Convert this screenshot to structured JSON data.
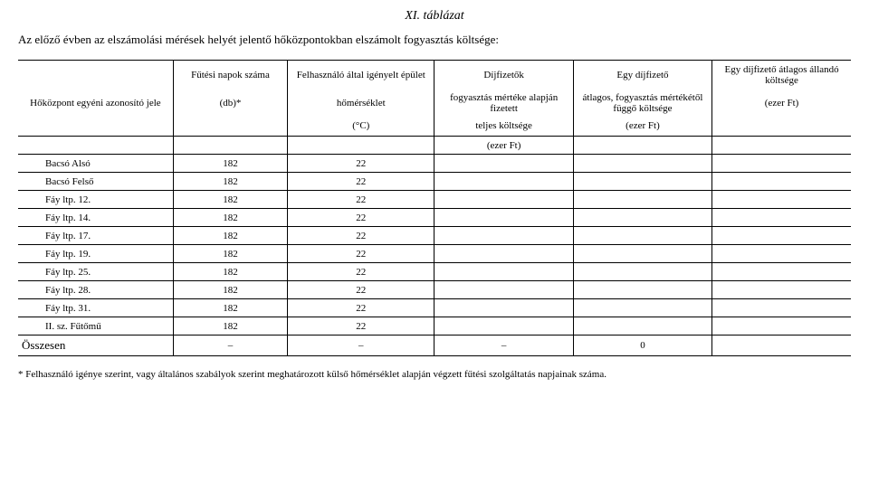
{
  "title": "XI. táblázat",
  "subtitle": "Az előző évben az elszámolási mérések helyét jelentő hőközpontokban elszámolt fogyasztás költsége:",
  "header": {
    "r1c2": "Fűtési napok száma",
    "r1c3": "Felhasználó által igényelt épület",
    "r1c4": "Díjfizetők",
    "r1c5": "Egy díjfizető",
    "r1c6": "Egy díjfizető átlagos állandó költsége",
    "r2c1": "Hőközpont egyéni azonosító jele",
    "r2c2": "(db)*",
    "r2c3": "hőmérséklet",
    "r2c4": "fogyasztás mértéke alapján fizetett",
    "r2c5": "átlagos, fogyasztás mértékétől függő költsége",
    "r2c6": "(ezer Ft)",
    "r3c3": "(°C)",
    "r3c4": "teljes költsége",
    "r3c5": "(ezer Ft)",
    "r4c4": "(ezer Ft)"
  },
  "rows": [
    {
      "name": "Bacsó Alsó",
      "c2": "182",
      "c3": "22",
      "c4": "",
      "c5": "",
      "c6": ""
    },
    {
      "name": "Bacsó Felső",
      "c2": "182",
      "c3": "22",
      "c4": "",
      "c5": "",
      "c6": ""
    },
    {
      "name": "Fáy ltp. 12.",
      "c2": "182",
      "c3": "22",
      "c4": "",
      "c5": "",
      "c6": ""
    },
    {
      "name": "Fáy ltp. 14.",
      "c2": "182",
      "c3": "22",
      "c4": "",
      "c5": "",
      "c6": ""
    },
    {
      "name": "Fáy ltp. 17.",
      "c2": "182",
      "c3": "22",
      "c4": "",
      "c5": "",
      "c6": ""
    },
    {
      "name": "Fáy ltp. 19.",
      "c2": "182",
      "c3": "22",
      "c4": "",
      "c5": "",
      "c6": ""
    },
    {
      "name": "Fáy ltp. 25.",
      "c2": "182",
      "c3": "22",
      "c4": "",
      "c5": "",
      "c6": ""
    },
    {
      "name": "Fáy ltp. 28.",
      "c2": "182",
      "c3": "22",
      "c4": "",
      "c5": "",
      "c6": ""
    },
    {
      "name": "Fáy ltp. 31.",
      "c2": "182",
      "c3": "22",
      "c4": "",
      "c5": "",
      "c6": ""
    },
    {
      "name": "II. sz. Fűtőmű",
      "c2": "182",
      "c3": "22",
      "c4": "",
      "c5": "",
      "c6": ""
    }
  ],
  "total": {
    "label": "Összesen",
    "c2": "–",
    "c3": "–",
    "c4": "–",
    "c5": "0",
    "c6": ""
  },
  "footnote": "* Felhasználó igénye szerint, vagy általános szabályok szerint meghatározott külső hőmérséklet alapján végzett fűtési szolgáltatás napjainak száma."
}
